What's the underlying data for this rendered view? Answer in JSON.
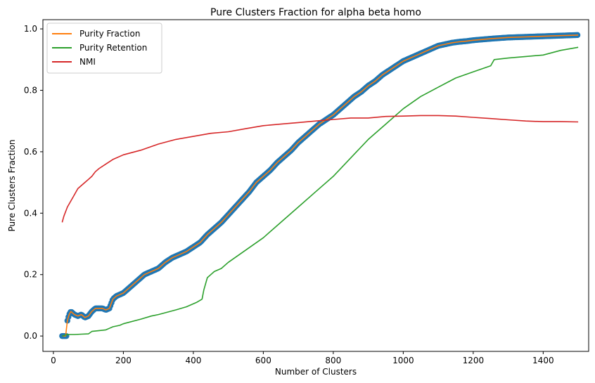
{
  "chart_data": {
    "type": "line",
    "title": "Pure Clusters Fraction for alpha beta homo",
    "xlabel": "Number of Clusters",
    "ylabel": "Pure Clusters Fraction",
    "xlim": [
      -30,
      1530
    ],
    "ylim": [
      -0.05,
      1.03
    ],
    "xticks": [
      0,
      200,
      400,
      600,
      800,
      1000,
      1200,
      1400
    ],
    "yticks": [
      0.0,
      0.2,
      0.4,
      0.6,
      0.8,
      1.0
    ],
    "xtick_labels": [
      "0",
      "200",
      "400",
      "600",
      "800",
      "1000",
      "1200",
      "1400"
    ],
    "ytick_labels": [
      "0.0",
      "0.2",
      "0.4",
      "0.6",
      "0.8",
      "1.0"
    ],
    "grid": false,
    "legend_position": "top-left",
    "series": [
      {
        "name": "Purity Fraction",
        "color": "#ff7f0e",
        "x": [
          25,
          35,
          40,
          45,
          50,
          60,
          70,
          80,
          90,
          100,
          110,
          120,
          130,
          140,
          150,
          160,
          170,
          180,
          200,
          220,
          240,
          260,
          280,
          300,
          320,
          340,
          360,
          380,
          400,
          420,
          440,
          460,
          480,
          500,
          520,
          540,
          560,
          580,
          600,
          620,
          640,
          660,
          680,
          700,
          720,
          740,
          760,
          780,
          800,
          820,
          840,
          860,
          880,
          900,
          920,
          940,
          960,
          980,
          1000,
          1020,
          1040,
          1060,
          1080,
          1100,
          1120,
          1140,
          1160,
          1180,
          1200,
          1250,
          1300,
          1350,
          1400,
          1450,
          1500
        ],
        "y": [
          0.0,
          0.0,
          0.05,
          0.07,
          0.08,
          0.07,
          0.065,
          0.07,
          0.06,
          0.065,
          0.08,
          0.09,
          0.09,
          0.09,
          0.085,
          0.09,
          0.12,
          0.13,
          0.14,
          0.16,
          0.18,
          0.2,
          0.21,
          0.22,
          0.24,
          0.255,
          0.265,
          0.275,
          0.29,
          0.305,
          0.33,
          0.35,
          0.37,
          0.395,
          0.42,
          0.445,
          0.47,
          0.5,
          0.52,
          0.54,
          0.565,
          0.585,
          0.605,
          0.63,
          0.65,
          0.67,
          0.69,
          0.705,
          0.72,
          0.74,
          0.76,
          0.78,
          0.795,
          0.815,
          0.83,
          0.85,
          0.865,
          0.88,
          0.895,
          0.905,
          0.915,
          0.925,
          0.935,
          0.945,
          0.95,
          0.955,
          0.958,
          0.96,
          0.963,
          0.968,
          0.972,
          0.974,
          0.976,
          0.978,
          0.98
        ]
      },
      {
        "name": "Purity Retention",
        "color": "#2ca02c",
        "x": [
          25,
          40,
          60,
          80,
          100,
          110,
          150,
          160,
          170,
          190,
          200,
          250,
          280,
          300,
          350,
          380,
          410,
          425,
          430,
          440,
          450,
          460,
          480,
          500,
          550,
          600,
          650,
          700,
          750,
          800,
          850,
          900,
          950,
          1000,
          1050,
          1100,
          1150,
          1200,
          1250,
          1260,
          1300,
          1350,
          1400,
          1450,
          1500
        ],
        "y": [
          0.0,
          0.005,
          0.005,
          0.006,
          0.007,
          0.015,
          0.02,
          0.025,
          0.03,
          0.035,
          0.04,
          0.055,
          0.065,
          0.07,
          0.085,
          0.095,
          0.11,
          0.12,
          0.15,
          0.19,
          0.2,
          0.21,
          0.22,
          0.24,
          0.28,
          0.32,
          0.37,
          0.42,
          0.47,
          0.52,
          0.58,
          0.64,
          0.69,
          0.74,
          0.78,
          0.81,
          0.84,
          0.86,
          0.88,
          0.9,
          0.905,
          0.91,
          0.915,
          0.93,
          0.94
        ]
      },
      {
        "name": "NMI",
        "color": "#d62728",
        "x": [
          25,
          30,
          40,
          50,
          60,
          70,
          80,
          90,
          100,
          110,
          120,
          130,
          150,
          170,
          200,
          250,
          300,
          350,
          400,
          450,
          500,
          550,
          600,
          650,
          700,
          750,
          800,
          850,
          900,
          950,
          1000,
          1050,
          1100,
          1150,
          1200,
          1250,
          1300,
          1350,
          1400,
          1450,
          1500
        ],
        "y": [
          0.37,
          0.39,
          0.42,
          0.44,
          0.46,
          0.48,
          0.49,
          0.5,
          0.51,
          0.52,
          0.535,
          0.545,
          0.56,
          0.575,
          0.59,
          0.605,
          0.625,
          0.64,
          0.65,
          0.66,
          0.665,
          0.675,
          0.685,
          0.69,
          0.695,
          0.7,
          0.705,
          0.71,
          0.71,
          0.715,
          0.716,
          0.718,
          0.718,
          0.716,
          0.712,
          0.708,
          0.704,
          0.7,
          0.698,
          0.698,
          0.697
        ]
      }
    ],
    "scatter": {
      "color": "#1f77b4",
      "marker": "circle",
      "follows_series": "Purity Fraction"
    }
  }
}
